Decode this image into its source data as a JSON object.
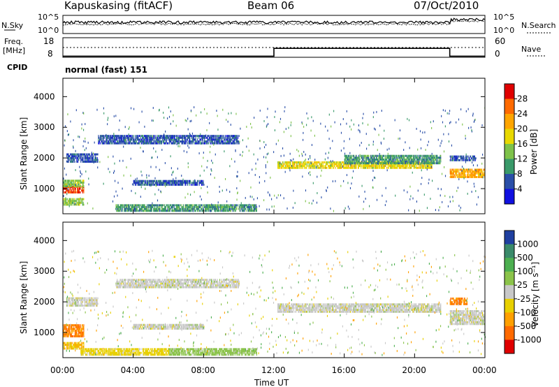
{
  "header": {
    "station": "Kapuskasing (fitACF)",
    "beam": "Beam 06",
    "date": "07/Oct/2010"
  },
  "noise_panel": {
    "left_label": "N.Sky",
    "right_label": "N.Search",
    "left_ticks": [
      "10^5",
      "10^0"
    ],
    "right_ticks": [
      "10^5",
      "10^0"
    ]
  },
  "freq_panel": {
    "left_label_1": "Freq.",
    "left_label_2": "[MHz]",
    "left_ticks": [
      "18",
      "8"
    ],
    "right_label": "Nave",
    "right_ticks": [
      "60",
      "0"
    ],
    "cpid_label": "CPID",
    "cpid_value": "normal (fast) 151"
  },
  "power_colorbar": {
    "label": "Power [dB]",
    "ticks": [
      "28",
      "24",
      "20",
      "16",
      "12",
      "8",
      "4"
    ],
    "colors": [
      "#e00000",
      "#ff6a00",
      "#ffa500",
      "#e8d800",
      "#7ec24a",
      "#3a9a6a",
      "#2a4fa8",
      "#1010e0"
    ]
  },
  "velocity_colorbar": {
    "label": "Velocity [m s⁻¹]",
    "ticks": [
      "1000",
      "500",
      "100",
      "25",
      "-25",
      "-100",
      "-500",
      "-1000"
    ],
    "colors": [
      "#1f3fa0",
      "#3a8a6a",
      "#4caf50",
      "#8bc34a",
      "#c8c8c8",
      "#e8d000",
      "#ffa000",
      "#ff6a00",
      "#e00000"
    ]
  },
  "axes": {
    "y_label": "Slant Range [km]",
    "y_ticks": [
      "4000",
      "3000",
      "2000",
      "1000"
    ],
    "x_label": "Time UT",
    "x_ticks": [
      "00:00",
      "04:00",
      "08:00",
      "12:00",
      "16:00",
      "20:00",
      "00:00"
    ]
  },
  "chart_data": {
    "type": "heatmap",
    "x_unit": "hours UT",
    "y_unit": "km",
    "xlim": [
      0,
      24
    ],
    "ylim": [
      180,
      4600
    ],
    "freq_trace": [
      {
        "t0": 0,
        "t1": 12,
        "mhz": 10
      },
      {
        "t0": 12,
        "t1": 22,
        "mhz": 14
      },
      {
        "t0": 22,
        "t1": 24,
        "mhz": 10
      }
    ],
    "power_bands": [
      {
        "t0": 0.0,
        "t1": 1.2,
        "r0": 850,
        "r1": 1050,
        "db": 28
      },
      {
        "t0": 0.0,
        "t1": 1.2,
        "r0": 1050,
        "r1": 1250,
        "db": 14
      },
      {
        "t0": 0.0,
        "t1": 1.2,
        "r0": 450,
        "r1": 650,
        "db": 14
      },
      {
        "t0": 0.2,
        "t1": 2.0,
        "r0": 1850,
        "r1": 2100,
        "db": 6
      },
      {
        "t0": 2.0,
        "t1": 10.0,
        "r0": 2450,
        "r1": 2700,
        "db": 6
      },
      {
        "t0": 4.0,
        "t1": 8.0,
        "r0": 1100,
        "r1": 1250,
        "db": 6
      },
      {
        "t0": 3.0,
        "t1": 11.0,
        "r0": 250,
        "r1": 450,
        "db": 10
      },
      {
        "t0": 12.2,
        "t1": 21.0,
        "r0": 1650,
        "r1": 1850,
        "db": 18
      },
      {
        "t0": 16.0,
        "t1": 21.5,
        "r0": 1800,
        "r1": 2100,
        "db": 10
      },
      {
        "t0": 22.0,
        "t1": 24.0,
        "r0": 1350,
        "r1": 1650,
        "db": 22
      },
      {
        "t0": 22.0,
        "t1": 23.5,
        "r0": 1900,
        "r1": 2050,
        "db": 6
      }
    ],
    "velocity_bands": [
      {
        "t0": 0.0,
        "t1": 1.2,
        "r0": 850,
        "r1": 1250,
        "v": -500
      },
      {
        "t0": 0.0,
        "t1": 1.2,
        "r0": 450,
        "r1": 650,
        "v": -100
      },
      {
        "t0": 0.2,
        "t1": 2.0,
        "r0": 1850,
        "r1": 2100,
        "v": 0
      },
      {
        "t0": 3.0,
        "t1": 10.0,
        "r0": 2450,
        "r1": 2700,
        "v": 0
      },
      {
        "t0": 4.0,
        "t1": 8.0,
        "r0": 1100,
        "r1": 1250,
        "v": 0
      },
      {
        "t0": 6.0,
        "t1": 11.0,
        "r0": 250,
        "r1": 450,
        "v": 50
      },
      {
        "t0": 1.0,
        "t1": 6.0,
        "r0": 250,
        "r1": 450,
        "v": -50
      },
      {
        "t0": 12.2,
        "t1": 21.5,
        "r0": 1650,
        "r1": 1900,
        "v": 0
      },
      {
        "t0": 22.0,
        "t1": 24.0,
        "r0": 1250,
        "r1": 1700,
        "v": 0
      },
      {
        "t0": 22.0,
        "t1": 23.0,
        "r0": 1900,
        "r1": 2100,
        "v": -500
      }
    ]
  }
}
